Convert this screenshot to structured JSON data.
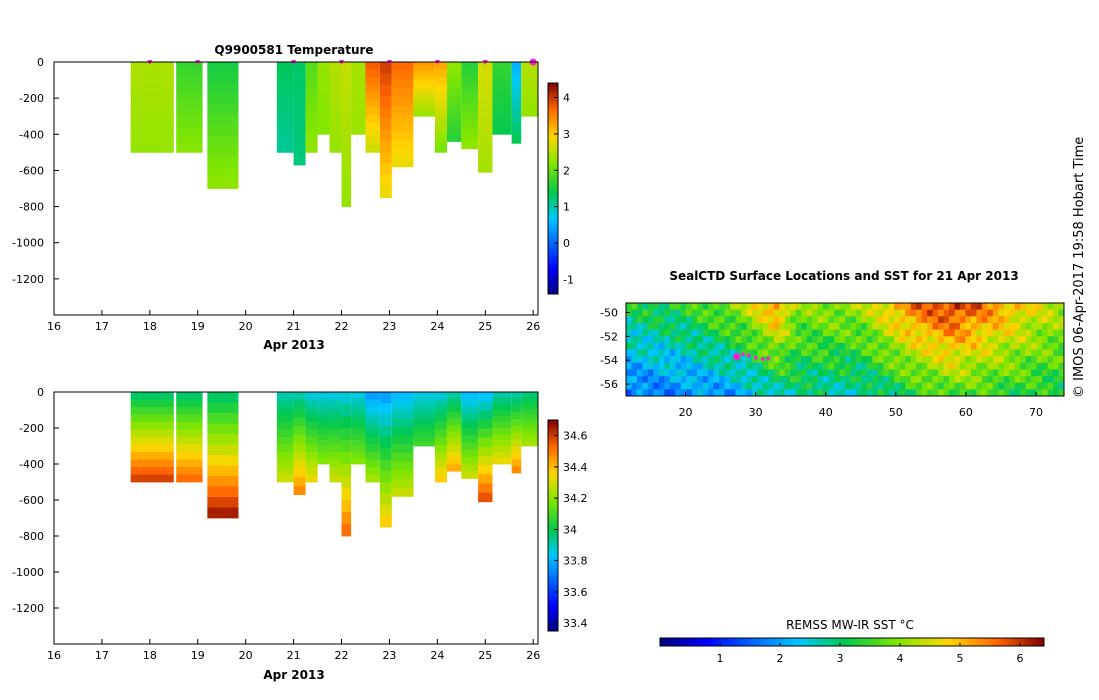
{
  "chart_data": [
    {
      "id": "temperature",
      "type": "heatmap",
      "title": "Q9900581  Temperature",
      "xlabel": "Apr 2013",
      "xlim": [
        16,
        26.1
      ],
      "xticks": [
        "16",
        "17",
        "18",
        "19",
        "20",
        "21",
        "22",
        "23",
        "24",
        "25",
        "26"
      ],
      "ylim": [
        -1400,
        0
      ],
      "yticks": [
        "0",
        "-200",
        "-400",
        "-600",
        "-800",
        "-1000",
        "-1200"
      ],
      "colorbar": {
        "min": -1.4,
        "max": 4.4,
        "ticks": [
          "-1",
          "0",
          "1",
          "2",
          "3",
          "4"
        ]
      },
      "profile_markers": [
        18,
        19,
        21,
        22,
        23,
        24,
        25
      ],
      "latest_marker": 26,
      "profiles": [
        {
          "t0": 17.6,
          "t1": 18.5,
          "depth": 500,
          "top": 2.45,
          "bottom": 2.3
        },
        {
          "t0": 18.55,
          "t1": 19.1,
          "depth": 500,
          "top": 1.7,
          "bottom": 2.25
        },
        {
          "t0": 19.2,
          "t1": 19.85,
          "depth": 700,
          "top": 1.5,
          "bottom": 2.3
        },
        {
          "t0": 20.65,
          "t1": 21.0,
          "depth": 500,
          "top": 1.35,
          "bottom": 1.1
        },
        {
          "t0": 21.0,
          "t1": 21.25,
          "depth": 570,
          "top": 1.3,
          "bottom": 1.2
        },
        {
          "t0": 21.25,
          "t1": 21.5,
          "depth": 500,
          "top": 1.9,
          "bottom": 2.3
        },
        {
          "t0": 21.5,
          "t1": 21.75,
          "depth": 400,
          "top": 2.3,
          "bottom": 2.2
        },
        {
          "t0": 21.75,
          "t1": 22.0,
          "depth": 500,
          "top": 2.5,
          "bottom": 2.3
        },
        {
          "t0": 22.0,
          "t1": 22.2,
          "depth": 800,
          "top": 2.6,
          "bottom": 2.3
        },
        {
          "t0": 22.2,
          "t1": 22.5,
          "depth": 400,
          "top": 2.4,
          "bottom": 2.35
        },
        {
          "t0": 22.5,
          "t1": 22.8,
          "depth": 500,
          "top": 3.8,
          "bottom": 2.6
        },
        {
          "t0": 22.8,
          "t1": 23.05,
          "depth": 750,
          "top": 4.0,
          "bottom": 2.8
        },
        {
          "t0": 23.05,
          "t1": 23.5,
          "depth": 580,
          "top": 3.7,
          "bottom": 2.8
        },
        {
          "t0": 23.5,
          "t1": 23.95,
          "depth": 300,
          "top": 3.4,
          "bottom": 2.3
        },
        {
          "t0": 23.95,
          "t1": 24.2,
          "depth": 500,
          "top": 3.3,
          "bottom": 2.1
        },
        {
          "t0": 24.2,
          "t1": 24.5,
          "depth": 440,
          "top": 2.3,
          "bottom": 1.6
        },
        {
          "t0": 24.5,
          "t1": 24.85,
          "depth": 480,
          "top": 1.6,
          "bottom": 2.3
        },
        {
          "t0": 24.85,
          "t1": 25.15,
          "depth": 610,
          "top": 2.7,
          "bottom": 2.4
        },
        {
          "t0": 25.15,
          "t1": 25.55,
          "depth": 400,
          "top": 1.7,
          "bottom": 1.4
        },
        {
          "t0": 25.55,
          "t1": 25.75,
          "depth": 450,
          "top": 0.5,
          "bottom": 1.4
        },
        {
          "t0": 25.75,
          "t1": 26.1,
          "depth": 300,
          "top": 2.5,
          "bottom": 2.3
        }
      ]
    },
    {
      "id": "salinity",
      "type": "heatmap",
      "title": "",
      "xlabel": "Apr 2013",
      "xlim": [
        16,
        26.1
      ],
      "xticks": [
        "16",
        "17",
        "18",
        "19",
        "20",
        "21",
        "22",
        "23",
        "24",
        "25",
        "26"
      ],
      "ylim": [
        -1400,
        0
      ],
      "yticks": [
        "0",
        "-200",
        "-400",
        "-600",
        "-800",
        "-1000",
        "-1200"
      ],
      "colorbar": {
        "min": 33.35,
        "max": 34.7,
        "ticks": [
          "33.4",
          "33.6",
          "33.8",
          "34",
          "34.2",
          "34.4",
          "34.6"
        ]
      },
      "profiles": [
        {
          "t0": 17.6,
          "t1": 18.5,
          "depth": 500,
          "top": 33.95,
          "bottom": 34.62
        },
        {
          "t0": 18.55,
          "t1": 19.1,
          "depth": 500,
          "top": 33.95,
          "bottom": 34.55
        },
        {
          "t0": 19.2,
          "t1": 19.85,
          "depth": 700,
          "top": 33.95,
          "bottom": 34.68
        },
        {
          "t0": 20.65,
          "t1": 21.0,
          "depth": 500,
          "top": 33.9,
          "bottom": 34.3
        },
        {
          "t0": 21.0,
          "t1": 21.25,
          "depth": 570,
          "top": 33.9,
          "bottom": 34.5
        },
        {
          "t0": 21.25,
          "t1": 21.5,
          "depth": 500,
          "top": 33.85,
          "bottom": 34.35
        },
        {
          "t0": 21.5,
          "t1": 21.75,
          "depth": 400,
          "top": 33.85,
          "bottom": 34.2
        },
        {
          "t0": 21.75,
          "t1": 22.0,
          "depth": 500,
          "top": 33.85,
          "bottom": 34.3
        },
        {
          "t0": 22.0,
          "t1": 22.2,
          "depth": 800,
          "top": 33.85,
          "bottom": 34.55
        },
        {
          "t0": 22.2,
          "t1": 22.5,
          "depth": 400,
          "top": 33.85,
          "bottom": 34.2
        },
        {
          "t0": 22.5,
          "t1": 22.8,
          "depth": 500,
          "top": 33.75,
          "bottom": 34.25
        },
        {
          "t0": 22.8,
          "t1": 23.05,
          "depth": 750,
          "top": 33.75,
          "bottom": 34.4
        },
        {
          "t0": 23.05,
          "t1": 23.5,
          "depth": 580,
          "top": 33.8,
          "bottom": 34.3
        },
        {
          "t0": 23.5,
          "t1": 23.95,
          "depth": 300,
          "top": 33.85,
          "bottom": 34.1
        },
        {
          "t0": 23.95,
          "t1": 24.2,
          "depth": 500,
          "top": 33.85,
          "bottom": 34.4
        },
        {
          "t0": 24.2,
          "t1": 24.5,
          "depth": 440,
          "top": 33.9,
          "bottom": 34.45
        },
        {
          "t0": 24.5,
          "t1": 24.85,
          "depth": 480,
          "top": 33.8,
          "bottom": 34.3
        },
        {
          "t0": 24.85,
          "t1": 25.15,
          "depth": 610,
          "top": 33.8,
          "bottom": 34.6
        },
        {
          "t0": 25.15,
          "t1": 25.55,
          "depth": 400,
          "top": 33.9,
          "bottom": 34.35
        },
        {
          "t0": 25.55,
          "t1": 25.75,
          "depth": 450,
          "top": 33.9,
          "bottom": 34.5
        },
        {
          "t0": 25.75,
          "t1": 26.1,
          "depth": 300,
          "top": 33.95,
          "bottom": 34.25
        }
      ]
    },
    {
      "id": "sst_map",
      "type": "heatmap",
      "title": "SealCTD Surface Locations and SST for 21 Apr 2013",
      "xlim": [
        11.5,
        74
      ],
      "ylim": [
        -57,
        -49.2
      ],
      "xticks": [
        "20",
        "30",
        "40",
        "50",
        "60",
        "70"
      ],
      "yticks": [
        "-50",
        "-52",
        "-54",
        "-56"
      ],
      "colorbar": {
        "label": "REMSS MW-IR SST °C",
        "min": 0,
        "max": 6.4,
        "ticks": [
          "1",
          "2",
          "3",
          "4",
          "5",
          "6"
        ]
      },
      "sst_profile": [
        {
          "lon": 12,
          "north": 3.2,
          "south": 1.6
        },
        {
          "lon": 20,
          "north": 3.4,
          "south": 1.8
        },
        {
          "lon": 28,
          "north": 4.2,
          "south": 2.0
        },
        {
          "lon": 33,
          "north": 5.4,
          "south": 2.6
        },
        {
          "lon": 36,
          "north": 4.0,
          "south": 2.8
        },
        {
          "lon": 45,
          "north": 4.2,
          "south": 2.6
        },
        {
          "lon": 52,
          "north": 5.5,
          "south": 3.2
        },
        {
          "lon": 58,
          "north": 6.1,
          "south": 3.6
        },
        {
          "lon": 63,
          "north": 5.5,
          "south": 3.4
        },
        {
          "lon": 70,
          "north": 4.6,
          "south": 3.2
        },
        {
          "lon": 74,
          "north": 4.2,
          "south": 3.2
        }
      ],
      "locations": [
        {
          "lon": 27.3,
          "lat": -53.7,
          "last": true
        },
        {
          "lon": 28.2,
          "lat": -53.5
        },
        {
          "lon": 29.0,
          "lat": -53.6
        },
        {
          "lon": 30.0,
          "lat": -53.8
        },
        {
          "lon": 31.0,
          "lat": -53.9
        },
        {
          "lon": 31.8,
          "lat": -53.85
        }
      ]
    }
  ],
  "credit": "© IMOS 06-Apr-2017 19:58 Hobart Time",
  "colors": {
    "background": "#ffffff",
    "marker": "#ff1ed6",
    "axis": "#000000"
  }
}
